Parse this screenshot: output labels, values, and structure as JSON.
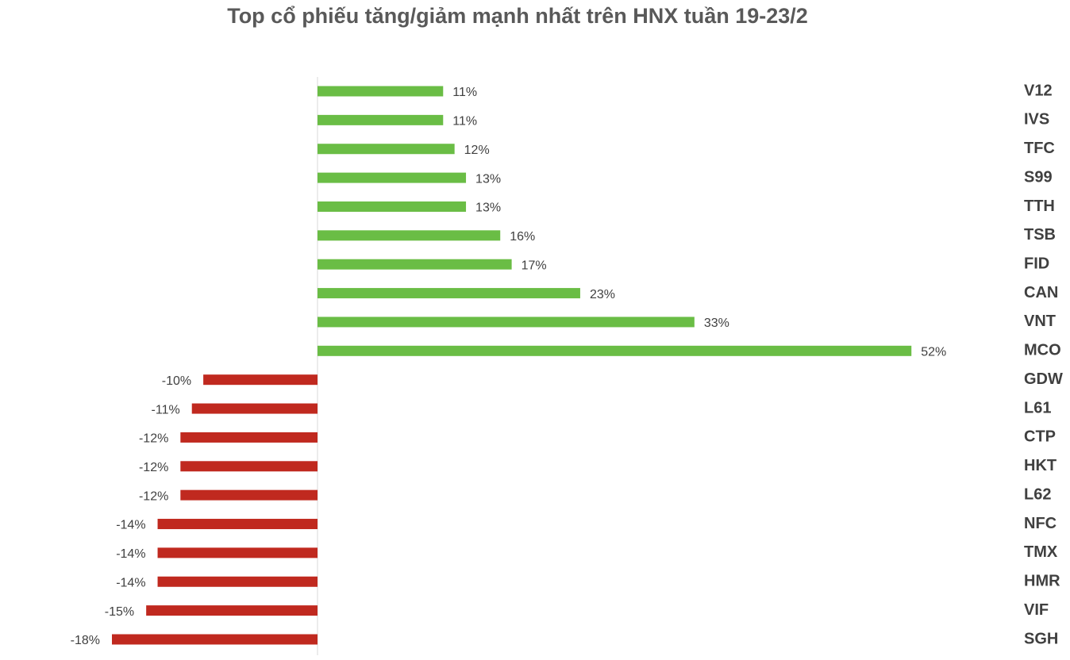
{
  "chart_data": {
    "type": "barh",
    "title": "Top cổ phiếu tăng/giảm mạnh nhất trên HNX tuần 19-23/2",
    "categories": [
      "V12",
      "IVS",
      "TFC",
      "S99",
      "TTH",
      "TSB",
      "FID",
      "CAN",
      "VNT",
      "MCO",
      "GDW",
      "L61",
      "CTP",
      "HKT",
      "L62",
      "NFC",
      "TMX",
      "HMR",
      "VIF",
      "SGH"
    ],
    "values": [
      11,
      11,
      12,
      13,
      13,
      16,
      17,
      23,
      33,
      52,
      -10,
      -11,
      -12,
      -12,
      -12,
      -14,
      -14,
      -14,
      -15,
      -18
    ],
    "value_labels": [
      "11%",
      "11%",
      "12%",
      "13%",
      "13%",
      "16%",
      "17%",
      "23%",
      "33%",
      "52%",
      "-10%",
      "-11%",
      "-12%",
      "-12%",
      "-12%",
      "-14%",
      "-14%",
      "-14%",
      "-15%",
      "-18%"
    ],
    "colors": {
      "positive": "#6abd45",
      "negative": "#c0291f"
    }
  }
}
